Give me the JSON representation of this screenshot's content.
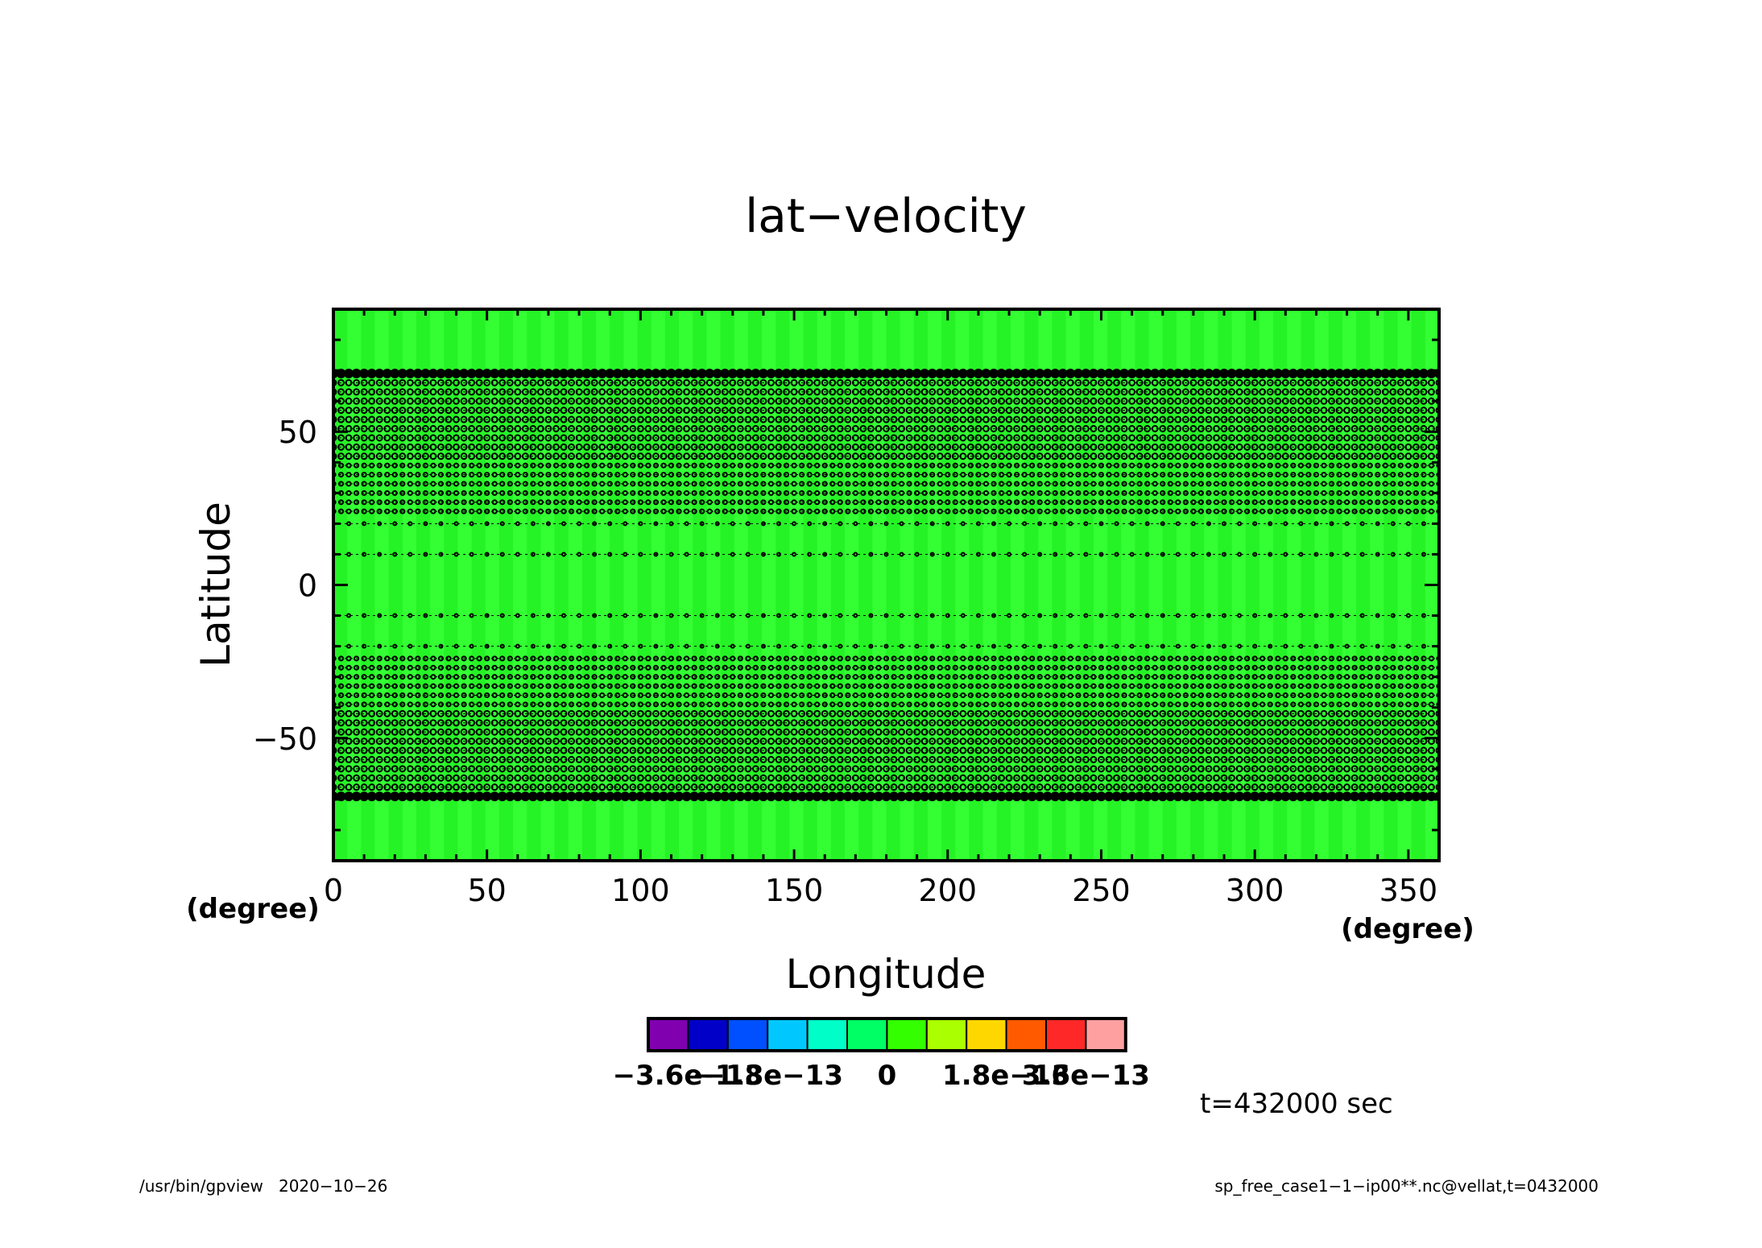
{
  "chart_data": {
    "type": "heatmap",
    "title": "lat−velocity",
    "xlabel": "Longitude",
    "ylabel": "Latitude",
    "x_unit": "(degree)",
    "y_unit": "(degree)",
    "xlim": [
      0,
      360
    ],
    "ylim": [
      -90,
      90
    ],
    "x_ticks": [
      {
        "value": 0,
        "label": "0"
      },
      {
        "value": 50,
        "label": "50"
      },
      {
        "value": 100,
        "label": "100"
      },
      {
        "value": 150,
        "label": "150"
      },
      {
        "value": 200,
        "label": "200"
      },
      {
        "value": 250,
        "label": "250"
      },
      {
        "value": 300,
        "label": "300"
      },
      {
        "value": 350,
        "label": "350"
      }
    ],
    "y_ticks": [
      {
        "value": -50,
        "label": "−50"
      },
      {
        "value": 0,
        "label": "0"
      },
      {
        "value": 50,
        "label": "50"
      }
    ],
    "field_value": 0,
    "field_color": "#33ff33",
    "contour_lat_bands": [
      -69,
      -66,
      -63,
      -60,
      -57,
      -54,
      -51,
      -48,
      -45,
      -42,
      -39,
      -36,
      -33,
      -30,
      -27,
      -24,
      -20,
      -10,
      10,
      20,
      24,
      27,
      30,
      33,
      36,
      39,
      42,
      45,
      48,
      51,
      54,
      57,
      60,
      63,
      66,
      69
    ],
    "contour_color": "#000000",
    "colorbar": {
      "colors": [
        "#8000b0",
        "#0000c8",
        "#0050ff",
        "#00c8ff",
        "#00ffc8",
        "#00ff64",
        "#33ff00",
        "#aaff00",
        "#ffd700",
        "#ff5a00",
        "#ff2828",
        "#ffa0a0"
      ],
      "tick_labels": [
        {
          "index": 1,
          "label": "−3.6e−13"
        },
        {
          "index": 3,
          "label": "−1.8e−13"
        },
        {
          "index": 6,
          "label": "0"
        },
        {
          "index": 9,
          "label": "1.8e−13"
        },
        {
          "index": 11,
          "label": "3.6e−13"
        }
      ]
    },
    "time_label": "t=432000 sec",
    "footer_left": "/usr/bin/gpview   2020−10−26",
    "footer_right": "sp_free_case1−1−ip00**.nc@vellat,t=0432000"
  }
}
